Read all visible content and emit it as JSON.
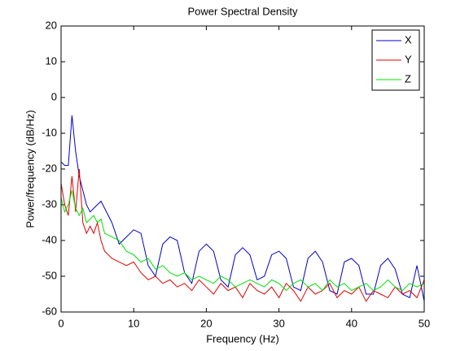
{
  "chart_data": {
    "type": "line",
    "title": "Power Spectral Density",
    "x_label": "Frequency (Hz)",
    "y_label": "Power/frequency (dB/Hz)",
    "x": [
      0,
      0.5,
      1,
      1.5,
      2,
      2.5,
      3,
      3.5,
      4,
      4.5,
      5,
      5.5,
      6,
      7,
      8,
      9,
      10,
      11,
      12,
      13,
      14,
      15,
      16,
      17,
      18,
      19,
      20,
      21,
      22,
      23,
      24,
      25,
      26,
      27,
      28,
      29,
      30,
      31,
      32,
      33,
      34,
      35,
      36,
      37,
      38,
      39,
      40,
      41,
      42,
      43,
      44,
      45,
      46,
      47,
      48,
      49,
      50
    ],
    "series": [
      {
        "name": "X",
        "color": "#0000c8",
        "values": [
          -18,
          -19,
          -19,
          -5,
          -15,
          -22,
          -26,
          -30,
          -32,
          -31,
          -30,
          -29,
          -31,
          -35,
          -41,
          -39,
          -37,
          -38,
          -47,
          -50,
          -41,
          -39,
          -40,
          -49,
          -52,
          -43,
          -41,
          -43,
          -51,
          -53,
          -44,
          -42,
          -44,
          -51,
          -50,
          -44,
          -43,
          -45,
          -53,
          -54,
          -45,
          -43,
          -46,
          -54,
          -55,
          -46,
          -45,
          -47,
          -55,
          -55,
          -47,
          -45,
          -48,
          -55,
          -56,
          -47,
          -57
        ]
      },
      {
        "name": "Y",
        "color": "#e00000",
        "values": [
          -24,
          -30,
          -33,
          -22,
          -32,
          -20,
          -35,
          -38,
          -36,
          -38,
          -35,
          -40,
          -43,
          -45,
          -46,
          -47,
          -46,
          -49,
          -51,
          -50,
          -52,
          -51,
          -53,
          -52,
          -54,
          -51,
          -53,
          -55,
          -52,
          -54,
          -53,
          -56,
          -52,
          -54,
          -55,
          -53,
          -56,
          -52,
          -54,
          -57,
          -53,
          -55,
          -54,
          -52,
          -56,
          -54,
          -55,
          -53,
          -57,
          -54,
          -55,
          -56,
          -53,
          -55,
          -54,
          -56,
          -51
        ]
      },
      {
        "name": "Z",
        "color": "#00e000",
        "values": [
          -28,
          -32,
          -30,
          -26,
          -31,
          -33,
          -31,
          -35,
          -34,
          -33,
          -35,
          -34,
          -38,
          -39,
          -40,
          -43,
          -44,
          -46,
          -45,
          -48,
          -47,
          -49,
          -50,
          -49,
          -51,
          -50,
          -51,
          -52,
          -50,
          -51,
          -53,
          -52,
          -51,
          -52,
          -53,
          -51,
          -52,
          -54,
          -52,
          -51,
          -53,
          -52,
          -54,
          -51,
          -53,
          -52,
          -54,
          -53,
          -52,
          -54,
          -53,
          -51,
          -53,
          -54,
          -52,
          -53,
          -52
        ]
      }
    ],
    "xlim": [
      0,
      50
    ],
    "xticks": [
      0,
      10,
      20,
      30,
      40,
      50
    ],
    "ylim": [
      -60,
      20
    ],
    "yticks": [
      -60,
      -50,
      -40,
      -30,
      -20,
      -10,
      0,
      10,
      20
    ],
    "grid": false,
    "legend": "northeast"
  }
}
